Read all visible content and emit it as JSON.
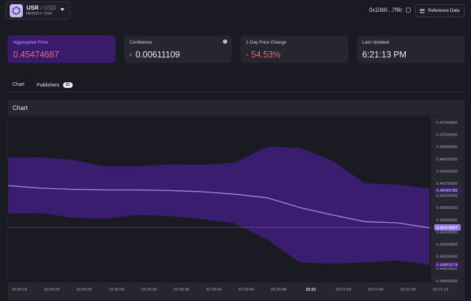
{
  "header": {
    "symbol": "USR",
    "separator": " / ",
    "quote": "USD",
    "name": "RESOLV USR",
    "address": "0x10b0...7f9c",
    "reference_button": "Reference Data"
  },
  "cards": [
    {
      "label": "Aggregated Price",
      "value": "0.45474687"
    },
    {
      "label": "Confidence",
      "prefix": "±",
      "value": "0.00611109"
    },
    {
      "label": "1-Day Price Change",
      "value": "- 54.53%"
    },
    {
      "label": "Last Updated",
      "value": "6:21:13 PM"
    }
  ],
  "tabs": {
    "chart": "Chart",
    "publishers": "Publishers",
    "publishers_count": "21"
  },
  "panel": {
    "title": "Chart"
  },
  "colors": {
    "band": "#3a1d6e",
    "line": "#a98df0",
    "accent": "#7f5ad8",
    "bg": "#1a1a23"
  },
  "chart_data": {
    "type": "line",
    "title": "Chart",
    "x": [
      "22:20:19",
      "22:20:22",
      "22:20:25",
      "22:20:30",
      "22:20:33",
      "22:20:36",
      "22:20:40",
      "22:20:44",
      "22:20:48",
      "22:21",
      "22:21:03",
      "22:21:06",
      "22:21:09",
      "22:21:12"
    ],
    "x_bold": [
      "22:21"
    ],
    "ylim": [
      0.446,
      0.473
    ],
    "yticks": [
      "0.47200000",
      "0.47000000",
      "0.46800000",
      "0.46600000",
      "0.46400000",
      "0.46200000",
      "0.46000000",
      "0.45800000",
      "0.45600000",
      "0.45400000",
      "0.45200000",
      "0.45000000",
      "0.44800000",
      "0.44600000"
    ],
    "series": [
      {
        "name": "price",
        "values": [
          0.4616,
          0.4612,
          0.461,
          0.4609,
          0.4609,
          0.4608,
          0.4606,
          0.4602,
          0.4596,
          0.458,
          0.4568,
          0.4557,
          0.4555,
          0.4547
        ]
      },
      {
        "name": "upper",
        "values": [
          0.4662,
          0.4663,
          0.4658,
          0.4648,
          0.4648,
          0.4651,
          0.465,
          0.4654,
          0.468,
          0.4678,
          0.4657,
          0.462,
          0.4618,
          0.4611
        ]
      },
      {
        "name": "lower",
        "values": [
          0.457,
          0.4571,
          0.4563,
          0.4562,
          0.4568,
          0.4566,
          0.4561,
          0.4554,
          0.4527,
          0.449,
          0.4488,
          0.449,
          0.4493,
          0.4486
        ]
      }
    ],
    "markers": [
      {
        "value": 0.46085786,
        "label": "0.46085786",
        "style": "upper"
      },
      {
        "value": 0.45474687,
        "label": "0.45474687",
        "style": "current"
      },
      {
        "value": 0.44863578,
        "label": "0.44863578",
        "style": "lower"
      }
    ],
    "current_line": 0.45474687
  }
}
